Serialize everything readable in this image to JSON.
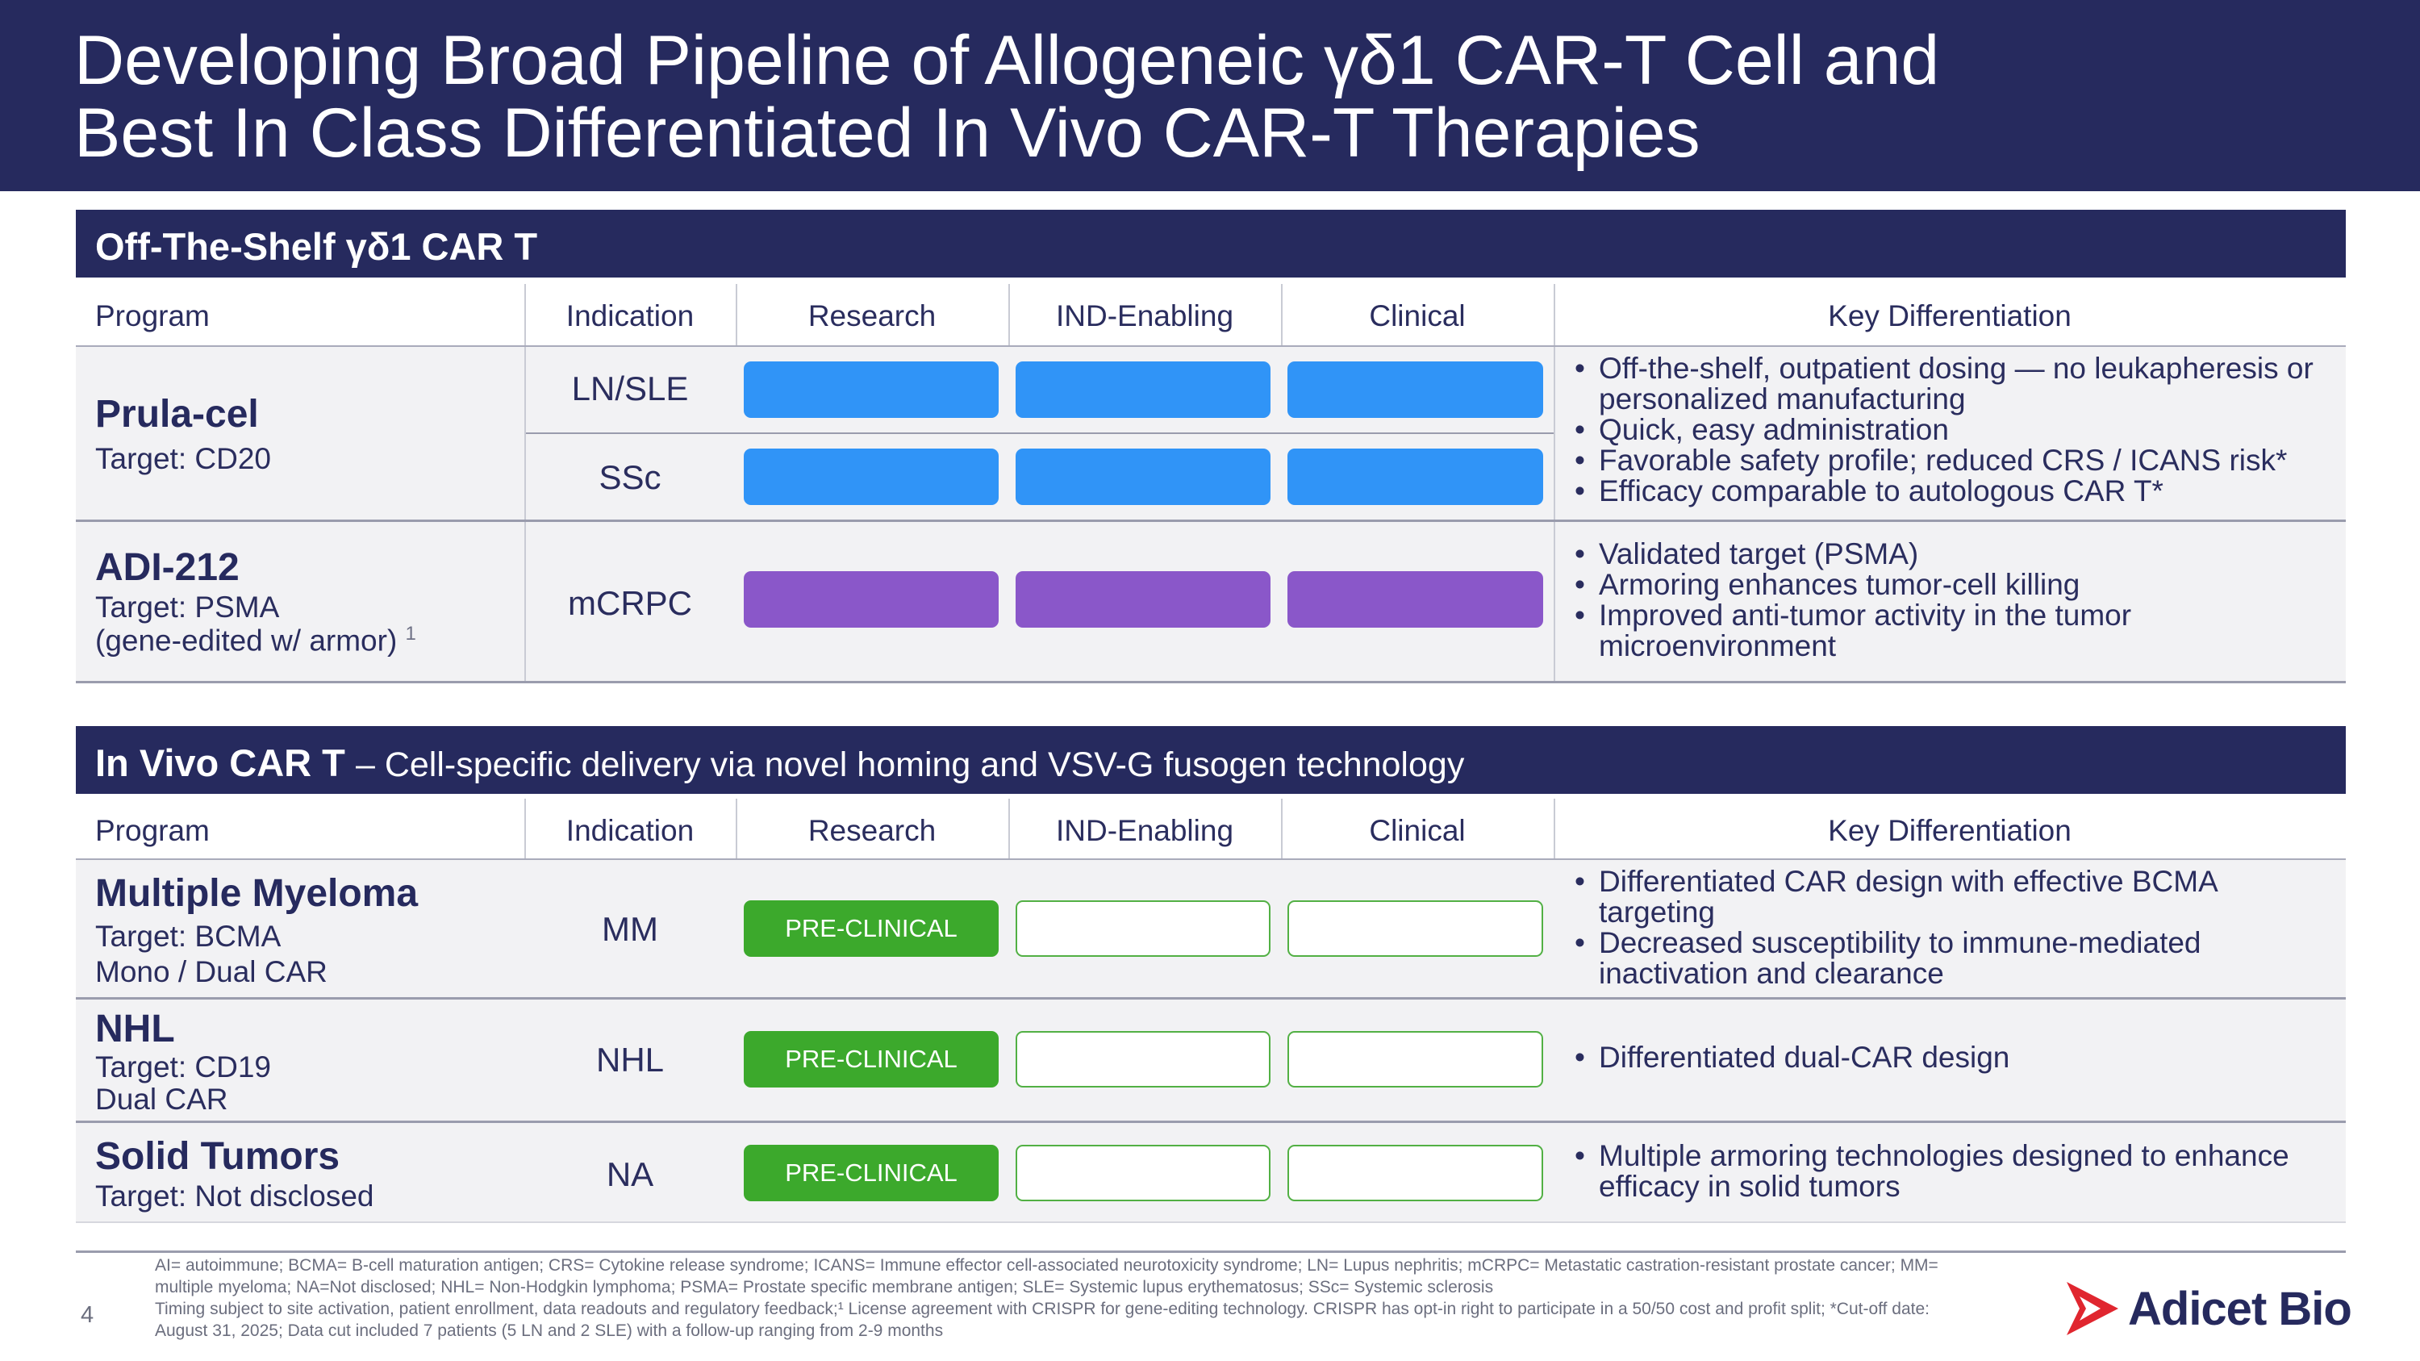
{
  "slide": {
    "title_line1": "Developing Broad Pipeline of Allogeneic γδ1 CAR-T Cell and",
    "title_line2": "Best In Class Differentiated In Vivo CAR-T Therapies",
    "page_number": "4"
  },
  "columns": {
    "program": "Program",
    "indication": "Indication",
    "research": "Research",
    "ind_enabling": "IND-Enabling",
    "clinical": "Clinical",
    "key_differentiation": "Key Differentiation"
  },
  "section1": {
    "title": "Off-The-Shelf γδ1 CAR T",
    "programs": [
      {
        "name": "Prula-cel",
        "target": "Target: CD20",
        "indications": [
          "LN/SLE",
          "SSc"
        ],
        "stage": "clinical",
        "bar_color": "#3094f7",
        "differentiation": [
          "Off-the-shelf, outpatient dosing — no leukapheresis or personalized manufacturing",
          "Quick, easy administration",
          "Favorable safety profile; reduced CRS / ICANS risk*",
          "Efficacy comparable to autologous CAR T*"
        ]
      },
      {
        "name": "ADI-212",
        "target": "Target: PSMA",
        "detail": "(gene-edited w/ armor)",
        "footnote_mark": "1",
        "indications": [
          "mCRPC"
        ],
        "stage": "clinical",
        "bar_color": "#8a57c9",
        "differentiation": [
          "Validated target (PSMA)",
          "Armoring enhances tumor-cell killing",
          "Improved anti-tumor activity in the tumor microenvironment"
        ]
      }
    ]
  },
  "section2": {
    "title": "In Vivo CAR T",
    "subtitle": "– Cell-specific delivery via novel homing and VSV-G fusogen technology",
    "programs": [
      {
        "name": "Multiple Myeloma",
        "target": "Target: BCMA",
        "detail": "Mono / Dual CAR",
        "indication": "MM",
        "stage_label": "PRE-CLINICAL",
        "differentiation": [
          "Differentiated CAR design with effective BCMA targeting",
          "Decreased susceptibility to immune-mediated inactivation and clearance"
        ]
      },
      {
        "name": "NHL",
        "target": "Target: CD19",
        "detail": "Dual CAR",
        "indication": "NHL",
        "stage_label": "PRE-CLINICAL",
        "differentiation": [
          "Differentiated dual-CAR design"
        ]
      },
      {
        "name": "Solid Tumors",
        "target": "Target: Not disclosed",
        "indication": "NA",
        "stage_label": "PRE-CLINICAL",
        "differentiation": [
          "Multiple armoring technologies designed to enhance efficacy in solid tumors"
        ]
      }
    ]
  },
  "footnotes": {
    "line1": "AI= autoimmune; BCMA= B-cell maturation antigen; CRS= Cytokine release syndrome; ICANS= Immune effector cell-associated neurotoxicity syndrome; LN= Lupus nephritis; mCRPC= Metastatic castration-resistant prostate cancer; MM= multiple myeloma; NA=Not disclosed; NHL= Non-Hodgkin lymphoma; PSMA= Prostate specific membrane antigen; SLE= Systemic lupus erythematosus; SSc= Systemic sclerosis",
    "line2": "Timing subject to site activation, patient enrollment, data readouts and regulatory feedback;¹ License agreement with CRISPR for gene-editing technology. CRISPR has opt-in right to participate in a 50/50 cost and profit split; *Cut-off date: August 31, 2025; Data cut included 7 patients (5 LN and 2 SLE) with a follow-up ranging from 2-9 months"
  },
  "logo": {
    "text": "Adicet Bio",
    "color": "#e0262f"
  }
}
